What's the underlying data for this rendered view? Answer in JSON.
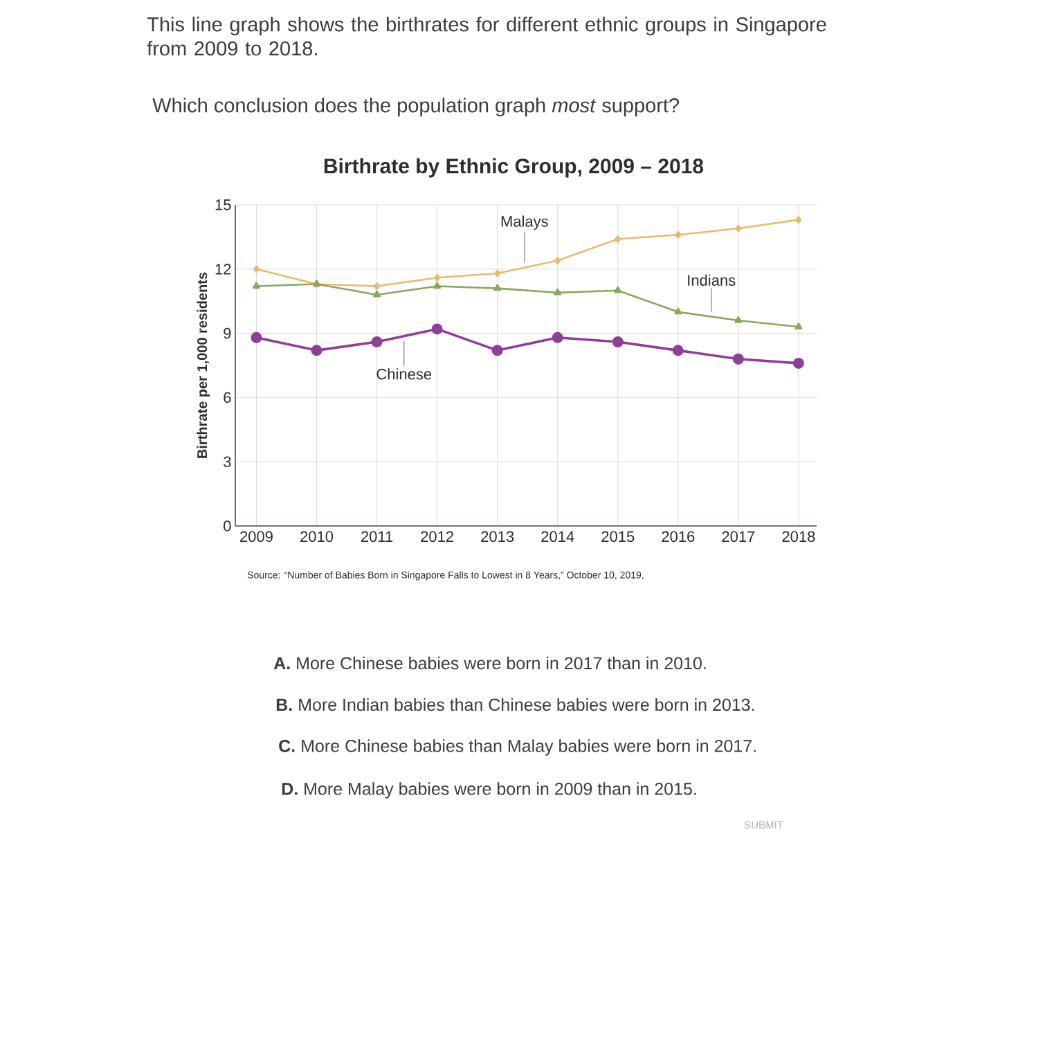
{
  "chart_data": {
    "type": "line",
    "title": "Birthrate by Ethnic Group, 2009 – 2018",
    "ylabel": "Birthrate per 1,000 residents",
    "categories": [
      "2009",
      "2010",
      "2011",
      "2012",
      "2013",
      "2014",
      "2015",
      "2016",
      "2017",
      "2018"
    ],
    "series": [
      {
        "name": "Malays",
        "color": "#eab96a",
        "marker": "diamond",
        "values": [
          12.0,
          11.3,
          11.2,
          11.6,
          11.8,
          12.4,
          13.4,
          13.6,
          13.9,
          14.3
        ]
      },
      {
        "name": "Indians",
        "color": "#8aa85a",
        "marker": "triangle",
        "values": [
          11.2,
          11.3,
          10.8,
          11.2,
          11.1,
          10.9,
          11.0,
          10.0,
          9.6,
          9.3
        ]
      },
      {
        "name": "Chinese",
        "color": "#8e3f97",
        "marker": "circle",
        "values": [
          8.8,
          8.2,
          8.6,
          9.2,
          8.2,
          8.8,
          8.6,
          8.2,
          7.8,
          7.6
        ]
      }
    ],
    "ylim": [
      0,
      15
    ],
    "yticks": [
      0,
      3,
      6,
      9,
      12,
      15
    ],
    "grid": true,
    "legend": false,
    "annotations": [
      "This line graph shows the birthrates for different ethnic groups in Singapore from 2009 to 2018.",
      "Which conclusion does the population graph *most* support?",
      "Source: “Number of Babies Born in Singapore Falls to Lowest in 8 Years,” October 10, 2019,",
      "**A.** More Chinese babies were born in 2017 than in 2010.",
      "**B.** More Indian babies than Chinese babies were born in 2013.",
      "**C.** More Chinese babies than Malay babies were born in 2017.",
      "**D.** More Malay babies were born in 2009 than in 2015.",
      "SUBMIT"
    ]
  }
}
